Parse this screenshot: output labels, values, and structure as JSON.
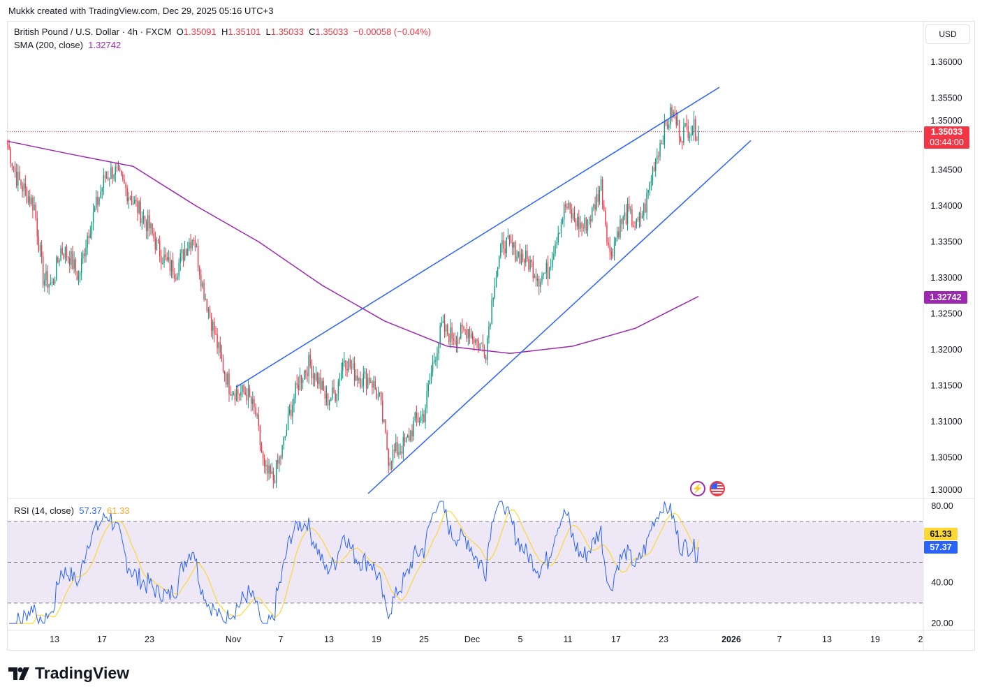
{
  "credit": "Mukkk created with TradingView.com, Dec 29, 2025 05:16 UTC+3",
  "legend": {
    "symbol": "British Pound / U.S. Dollar · 4h · FXCM",
    "o_label": "O",
    "o": "1.35091",
    "h_label": "H",
    "h": "1.35101",
    "l_label": "L",
    "l": "1.35033",
    "c_label": "C",
    "c": "1.35033",
    "change": "−0.00058 (−0.04%)"
  },
  "sma_legend": {
    "label": "SMA (200, close)",
    "value": "1.32742"
  },
  "rsi_legend": {
    "label": "RSI (14, close)",
    "rsi": "57.37",
    "ma": "61.33"
  },
  "currency": "USD",
  "price_tag": {
    "price": "1.35033",
    "countdown": "03:44:00"
  },
  "sma_tag": "1.32742",
  "rsi_tags": {
    "ma": "61.33",
    "rsi": "57.37"
  },
  "logo": "TradingView",
  "colors": {
    "up": "#089981",
    "down": "#f23645",
    "sma": "#9c27b0",
    "trend": "#2962ff",
    "rsi": "#2962ff",
    "rsi_ma": "#fdd835",
    "rsi_band": "#ede7f6"
  },
  "chart_data": {
    "type": "candlestick",
    "title": "British Pound / U.S. Dollar · 4h · FXCM",
    "price_ticks": [
      "1.36000",
      "1.35500",
      "1.35000",
      "1.34500",
      "1.34000",
      "1.33500",
      "1.33000",
      "1.32500",
      "1.32000",
      "1.31500",
      "1.31000",
      "1.30500",
      "1.30000"
    ],
    "ylim": [
      1.2995,
      1.3645
    ],
    "x_ticks": [
      "13",
      "17",
      "23",
      "Nov",
      "7",
      "13",
      "19",
      "25",
      "Dec",
      "5",
      "11",
      "17",
      "23",
      "2026",
      "7",
      "13",
      "19",
      "2"
    ],
    "daily_close": [
      1.3485,
      1.344,
      1.342,
      1.34,
      1.33,
      1.329,
      1.334,
      1.333,
      1.33,
      1.336,
      1.34,
      1.344,
      1.345,
      1.343,
      1.341,
      1.339,
      1.337,
      1.334,
      1.332,
      1.331,
      1.334,
      1.336,
      1.329,
      1.324,
      1.319,
      1.315,
      1.314,
      1.314,
      1.311,
      1.303,
      1.302,
      1.306,
      1.312,
      1.316,
      1.318,
      1.316,
      1.313,
      1.314,
      1.319,
      1.317,
      1.316,
      1.316,
      1.313,
      1.305,
      1.306,
      1.307,
      1.31,
      1.311,
      1.318,
      1.323,
      1.322,
      1.322,
      1.323,
      1.321,
      1.32,
      1.33,
      1.335,
      1.334,
      1.333,
      1.332,
      1.33,
      1.331,
      1.336,
      1.34,
      1.338,
      1.337,
      1.339,
      1.343,
      1.333,
      1.337,
      1.339,
      1.337,
      1.34,
      1.346,
      1.35,
      1.353,
      1.35,
      1.351,
      1.35033
    ],
    "sma200": [
      1.349,
      1.3472,
      1.3455,
      1.34,
      1.335,
      1.329,
      1.324,
      1.3205,
      1.3195,
      1.3205,
      1.323,
      1.32742
    ],
    "trendlines": [
      {
        "name": "upper",
        "from": 1.3148,
        "to": 1.3565
      },
      {
        "name": "lower",
        "from": 1.3,
        "to": 1.3491
      }
    ],
    "last_price": 1.35033,
    "rsi": {
      "ticks": [
        "80.00",
        "40.00",
        "20.00"
      ],
      "bands": [
        70,
        50,
        30
      ],
      "ylim": [
        20,
        80
      ],
      "last": 57.37,
      "ma_last": 61.33
    }
  }
}
